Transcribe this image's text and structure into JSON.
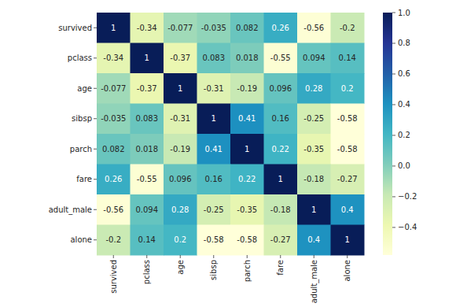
{
  "chart_data": {
    "type": "heatmap",
    "categories": [
      "survived",
      "pclass",
      "age",
      "sibsp",
      "parch",
      "fare",
      "adult_male",
      "alone"
    ],
    "cells": [
      [
        1,
        -0.34,
        -0.077,
        -0.035,
        0.082,
        0.26,
        -0.56,
        -0.2
      ],
      [
        -0.34,
        1,
        -0.37,
        0.083,
        0.018,
        -0.55,
        0.094,
        0.14
      ],
      [
        -0.077,
        -0.37,
        1,
        -0.31,
        -0.19,
        0.096,
        0.28,
        0.2
      ],
      [
        -0.035,
        0.083,
        -0.31,
        1,
        0.41,
        0.16,
        -0.25,
        -0.58
      ],
      [
        0.082,
        0.018,
        -0.19,
        0.41,
        1,
        0.22,
        -0.35,
        -0.58
      ],
      [
        0.26,
        -0.55,
        0.096,
        0.16,
        0.22,
        1,
        -0.18,
        -0.27
      ],
      [
        -0.56,
        0.094,
        0.28,
        -0.25,
        -0.35,
        -0.18,
        1,
        0.4
      ],
      [
        -0.2,
        0.14,
        0.2,
        -0.58,
        -0.58,
        -0.27,
        0.4,
        1
      ]
    ],
    "color": "YlGnBu",
    "data_labels": true,
    "color_range": [
      -0.58,
      1
    ],
    "color_ticks": [
      {
        "value": 1,
        "label": "1.0"
      },
      0.8,
      0.6,
      0.4,
      0.2,
      {
        "value": 0,
        "label": "0.0"
      },
      {
        "value": -0.2,
        "label": "−0.2"
      },
      {
        "value": -0.4,
        "label": "−0.4"
      }
    ]
  }
}
